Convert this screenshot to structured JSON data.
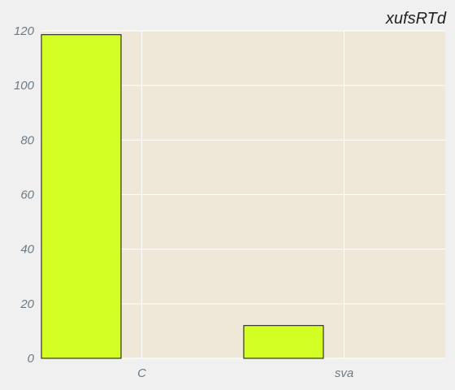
{
  "chart_data": {
    "type": "bar",
    "title": "xufsRTd",
    "xlabel": "",
    "ylabel": "",
    "categories": [
      "C",
      "sva"
    ],
    "values": [
      118.6,
      12
    ],
    "ylim": [
      0,
      120
    ],
    "yticks": [
      "0",
      "20",
      "40",
      "60",
      "80",
      "100",
      "120"
    ],
    "grid": true,
    "legend": "none",
    "colors": {
      "page_background": "#f0f0f0",
      "plot_background": "#efe8d8",
      "grid": "#ffffff",
      "bar_fill": "#d4ff24",
      "bar_stroke": "#111111",
      "tick_label": "#6b7b86",
      "title": "#222222"
    }
  }
}
